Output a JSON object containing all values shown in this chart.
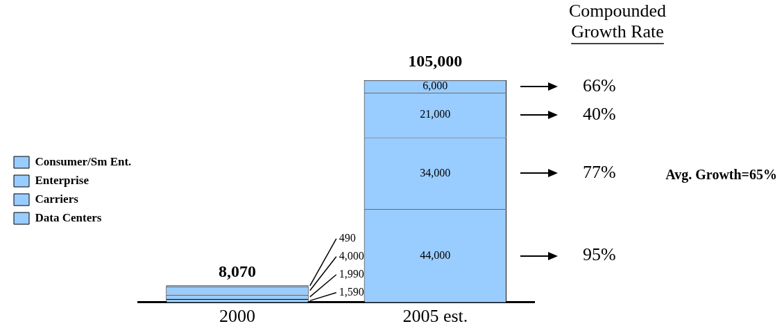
{
  "chart_data": {
    "type": "bar",
    "stacked": true,
    "categories": [
      "2000",
      "2005 est."
    ],
    "series": [
      {
        "name": "Data Centers",
        "color": "#99ccff",
        "values": [
          1590,
          44000
        ],
        "value_labels": [
          "1,590",
          "44,000"
        ]
      },
      {
        "name": "Carriers",
        "color": "#99ccff",
        "values": [
          1990,
          34000
        ],
        "value_labels": [
          "1,990",
          "34,000"
        ]
      },
      {
        "name": "Enterprise",
        "color": "#99ccff",
        "values": [
          4000,
          21000
        ],
        "value_labels": [
          "4,000",
          "21,000"
        ]
      },
      {
        "name": "Consumer/Sm Ent.",
        "color": "#99ccff",
        "values": [
          490,
          6000
        ],
        "value_labels": [
          "490",
          "6,000"
        ]
      }
    ],
    "totals": [
      "8,070",
      "105,000"
    ],
    "grid": false,
    "legend": "left",
    "tick_labels": "x",
    "annotations": [
      "Compounded Growth Rate",
      "66%",
      "40%",
      "77%",
      "95%",
      "Avg. Growth=65%"
    ]
  }
}
